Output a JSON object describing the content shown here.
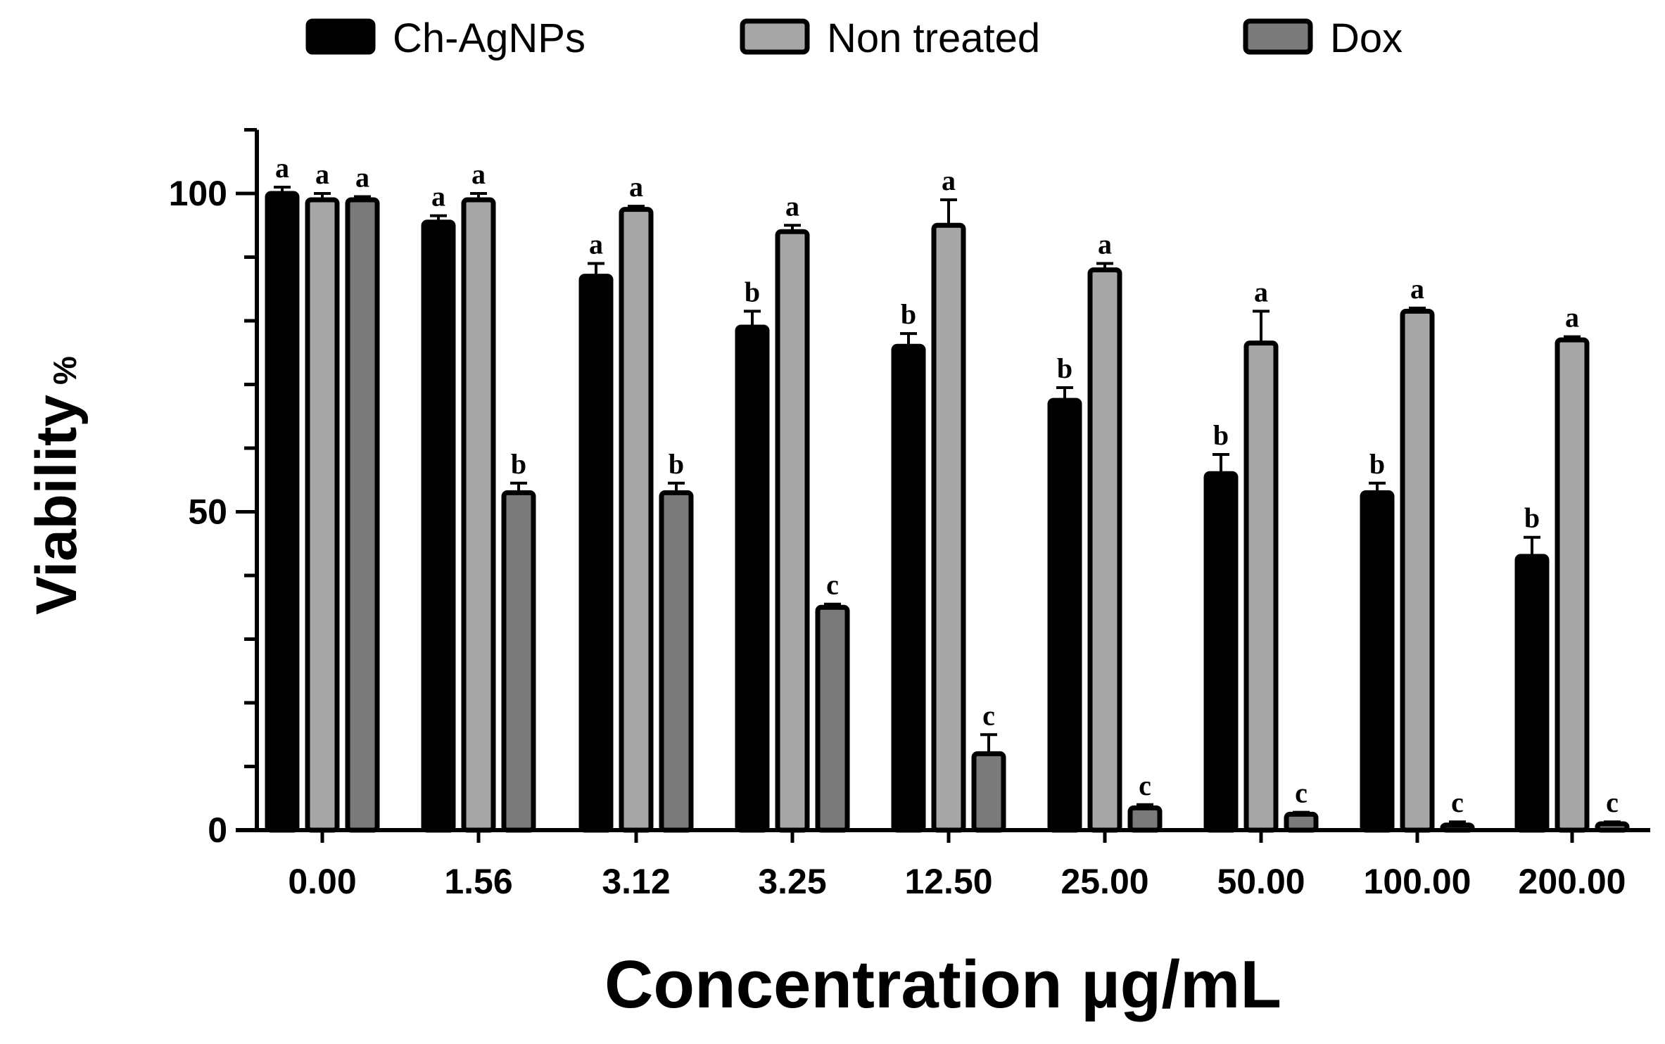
{
  "chart_data": {
    "type": "bar",
    "title": "",
    "xlabel": "Concentration µg/mL",
    "ylabel": "Viability",
    "ylabel_unit": "%",
    "ylim": [
      0,
      110
    ],
    "yticks": [
      0,
      50,
      100
    ],
    "categories": [
      "0.00",
      "1.56",
      "3.12",
      "3.25",
      "12.50",
      "25.00",
      "50.00",
      "100.00",
      "200.00"
    ],
    "legend_position": "top",
    "series": [
      {
        "name": "Ch-AgNPs",
        "color": "#000000",
        "values": [
          100,
          95.5,
          87,
          79,
          76,
          67.5,
          56,
          53,
          43
        ],
        "errors": [
          1,
          1,
          2,
          2.5,
          2,
          2,
          3,
          1.5,
          3
        ],
        "labels": [
          "a",
          "a",
          "a",
          "b",
          "b",
          "b",
          "b",
          "b",
          "b"
        ]
      },
      {
        "name": "Non treated",
        "color": "#a6a6a6",
        "values": [
          99,
          99,
          97.5,
          94,
          95,
          88,
          76.5,
          81.5,
          77
        ],
        "errors": [
          1,
          1,
          0.5,
          1,
          4,
          1,
          5,
          0.5,
          0.5
        ],
        "labels": [
          "a",
          "a",
          "a",
          "a",
          "a",
          "a",
          "a",
          "a",
          "a"
        ]
      },
      {
        "name": "Dox",
        "color": "#7a7a7a",
        "values": [
          99,
          53,
          53,
          35,
          12,
          3.5,
          2.5,
          0.8,
          1
        ],
        "errors": [
          0.5,
          1.5,
          1.5,
          0.5,
          3,
          0.5,
          0.3,
          0.5,
          0.3
        ],
        "labels": [
          "a",
          "b",
          "b",
          "c",
          "c",
          "c",
          "c",
          "c",
          "c"
        ]
      }
    ]
  }
}
